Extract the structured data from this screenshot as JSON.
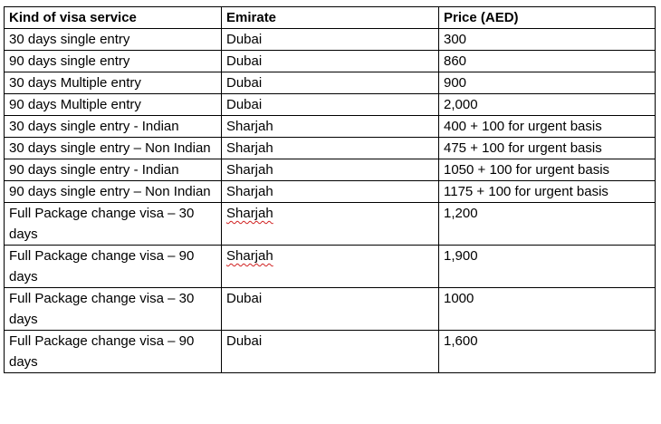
{
  "table": {
    "headers": [
      "Kind of visa service",
      "Emirate",
      "Price (AED)"
    ],
    "rows": [
      {
        "service": "30 days single entry",
        "emirate": "Dubai",
        "price": "300",
        "emirate_flagged": false
      },
      {
        "service": "90 days single entry",
        "emirate": "Dubai",
        "price": "860",
        "emirate_flagged": false
      },
      {
        "service": "30 days Multiple entry",
        "emirate": "Dubai",
        "price": "900",
        "emirate_flagged": false
      },
      {
        "service": "90 days Multiple entry",
        "emirate": "Dubai",
        "price": "2,000",
        "emirate_flagged": false
      },
      {
        "service": "30 days single entry - Indian",
        "emirate": "Sharjah",
        "price": "400 + 100 for urgent basis",
        "emirate_flagged": false
      },
      {
        "service": "30 days single entry – Non Indian",
        "emirate": "Sharjah",
        "price": "475 + 100 for urgent basis",
        "emirate_flagged": false
      },
      {
        "service": "90 days single entry - Indian",
        "emirate": "Sharjah",
        "price": "1050 + 100 for urgent basis",
        "emirate_flagged": false
      },
      {
        "service": "90 days single entry – Non Indian",
        "emirate": "Sharjah",
        "price": "1175 + 100 for urgent basis",
        "emirate_flagged": false
      },
      {
        "service": "Full Package change visa – 30 days",
        "emirate": "Sharjah",
        "price": "1,200",
        "emirate_flagged": true
      },
      {
        "service": "Full Package change visa – 90 days",
        "emirate": "Sharjah",
        "price": "1,900",
        "emirate_flagged": true
      },
      {
        "service": "Full Package change visa – 30 days",
        "emirate": "Dubai",
        "price": "1000",
        "emirate_flagged": false
      },
      {
        "service": "Full Package change visa – 90 days",
        "emirate": "Dubai",
        "price": "1,600",
        "emirate_flagged": false
      }
    ]
  },
  "colors": {
    "border": "#000000",
    "spellcheck_underline": "#d02020"
  }
}
